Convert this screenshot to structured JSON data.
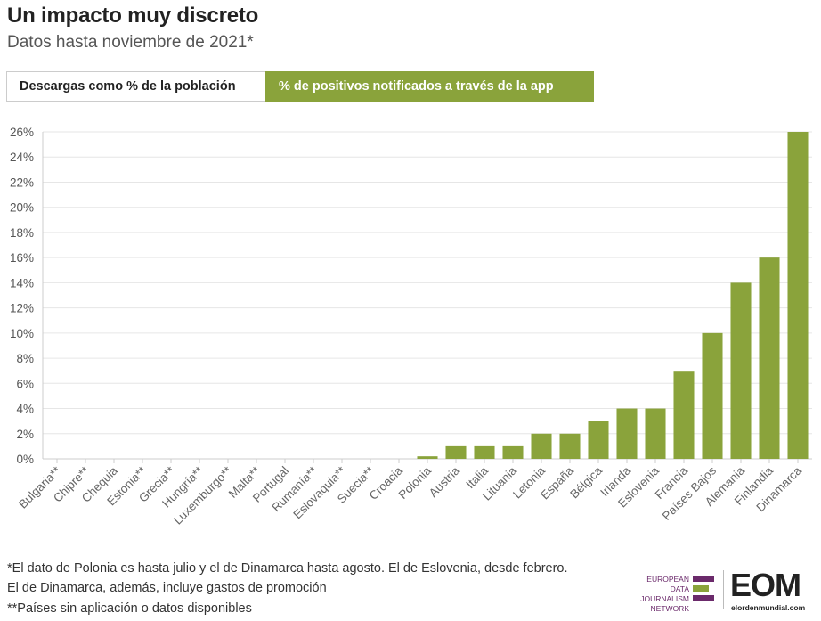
{
  "header": {
    "title": "Un impacto muy discreto",
    "subtitle": "Datos hasta noviembre de 2021*"
  },
  "tabs": [
    {
      "label": "Descargas como % de la población",
      "active": false
    },
    {
      "label": "% de positivos notificados a través de la app",
      "active": true
    }
  ],
  "chart_data": {
    "type": "bar",
    "categories": [
      "Bulgaria**",
      "Chipre**",
      "Chequia",
      "Estonia**",
      "Grecia**",
      "Hungría**",
      "Luxemburgo**",
      "Malta**",
      "Portugal",
      "Rumanía**",
      "Eslovaquia**",
      "Suecia**",
      "Croacia",
      "Polonia",
      "Austria",
      "Italia",
      "Lituania",
      "Letonia",
      "España",
      "Bélgica",
      "Irlanda",
      "Eslovenia",
      "Francia",
      "Países Bajos",
      "Alemania",
      "Finlandia",
      "Dinamarca"
    ],
    "values": [
      0,
      0,
      0,
      0,
      0,
      0,
      0,
      0,
      0,
      0,
      0,
      0,
      0,
      0.2,
      1,
      1,
      1,
      2,
      2,
      3,
      4,
      4,
      7,
      10,
      14,
      16,
      26
    ],
    "yticks": [
      "0%",
      "2%",
      "4%",
      "6%",
      "8%",
      "10%",
      "12%",
      "14%",
      "16%",
      "18%",
      "20%",
      "22%",
      "24%",
      "26%"
    ],
    "ylim": [
      0,
      26
    ],
    "bar_color": "#8aa33b",
    "grid": true
  },
  "footnotes": {
    "note1": "*El dato de Polonia es hasta julio y el de Dinamarca hasta agosto. El de Eslovenia, desde febrero. El de Dinamarca, además, incluye gastos de promoción",
    "note2": "**Países sin aplicación o datos disponibles"
  },
  "logos": {
    "edjnet_text": "EUROPEAN\nDATA JOURNALISM\nNETWORK",
    "eom_letters": "EOM",
    "eom_site": "elordenmundial.com"
  },
  "colors": {
    "accent": "#8aa33b",
    "edjnet_purple": "#6b2a6b",
    "edjnet_green": "#8aa33b"
  }
}
